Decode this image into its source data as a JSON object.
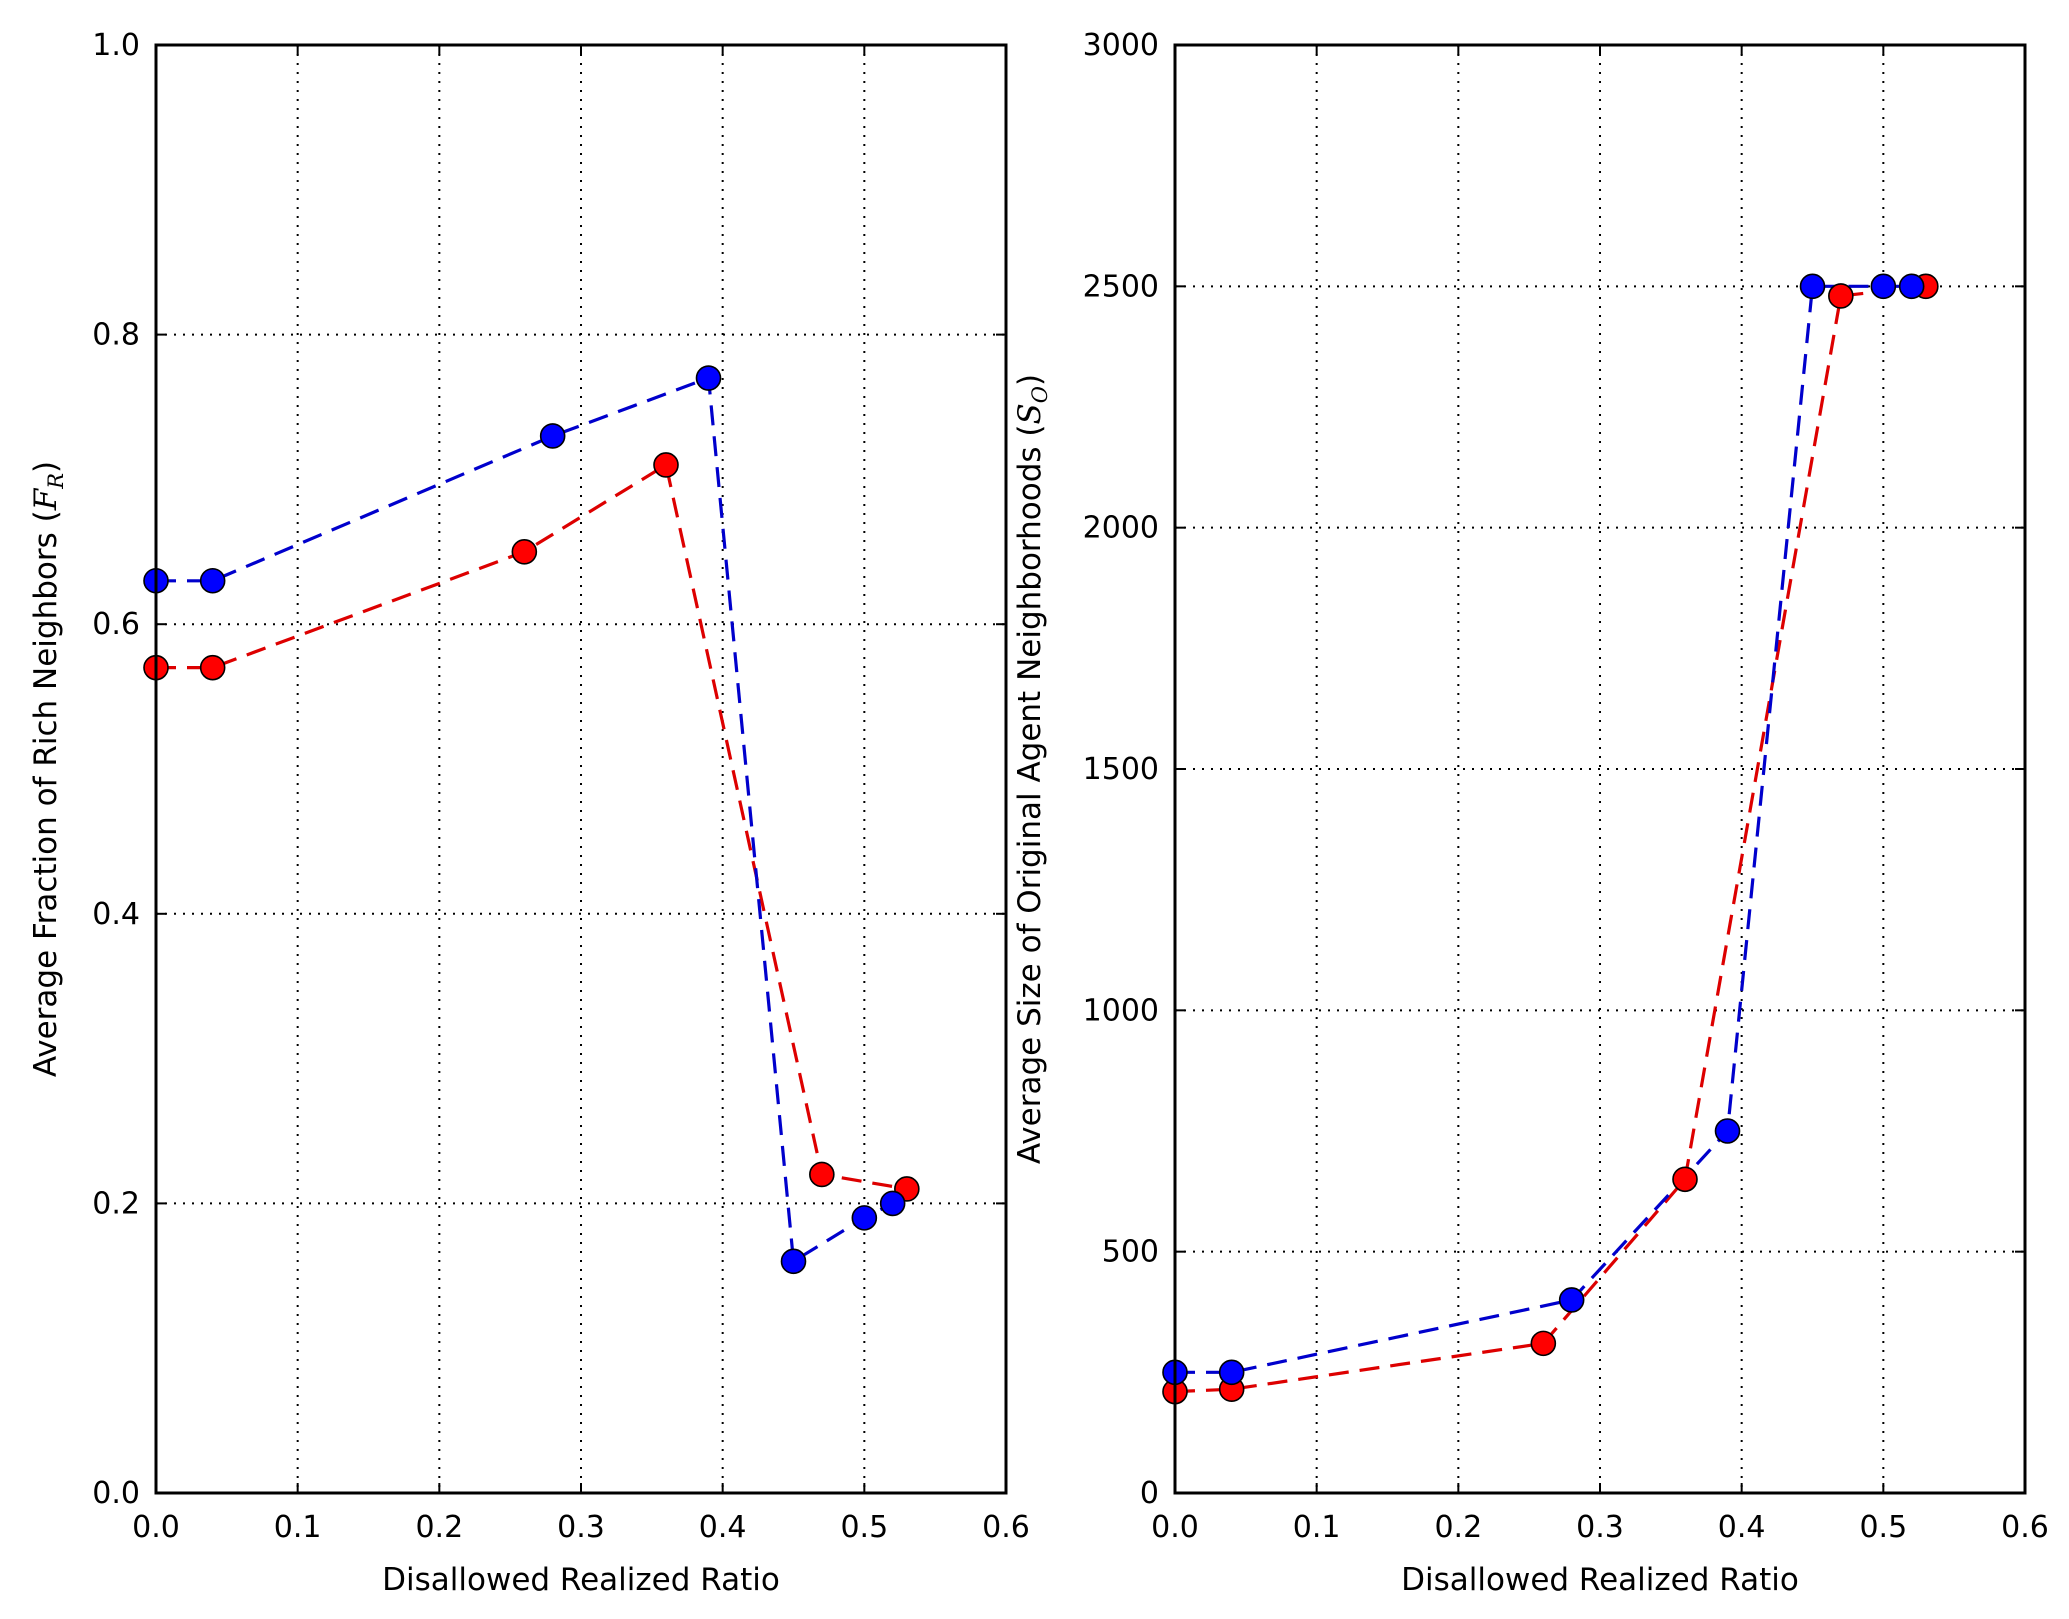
{
  "chart_data": [
    {
      "type": "line",
      "title": "",
      "xlabel": "Disallowed Realized Ratio",
      "ylabel": {
        "prefix": "Average Fraction of Rich Neighbors ",
        "symbol": "F",
        "subscript": "R"
      },
      "xlim": [
        0.0,
        0.6
      ],
      "ylim": [
        0.0,
        1.0
      ],
      "xticks": [
        "0.0",
        "0.1",
        "0.2",
        "0.3",
        "0.4",
        "0.5",
        "0.6"
      ],
      "yticks": [
        "0.0",
        "0.2",
        "0.4",
        "0.6",
        "0.8",
        "1.0"
      ],
      "grid": true,
      "series": [
        {
          "name": "red",
          "color": "#ff0000",
          "line_color": "#dd0000",
          "x": [
            0.0,
            0.04,
            0.26,
            0.36,
            0.47,
            0.53
          ],
          "y": [
            0.57,
            0.57,
            0.65,
            0.71,
            0.22,
            0.21
          ]
        },
        {
          "name": "blue",
          "color": "#0000ff",
          "line_color": "#0000cc",
          "x": [
            0.0,
            0.04,
            0.28,
            0.39,
            0.45,
            0.5,
            0.52
          ],
          "y": [
            0.63,
            0.63,
            0.73,
            0.77,
            0.16,
            0.19,
            0.2
          ]
        }
      ]
    },
    {
      "type": "line",
      "title": "",
      "xlabel": "Disallowed Realized Ratio",
      "ylabel": {
        "prefix": "Average Size of Original Agent Neighborhoods ",
        "symbol": "S",
        "subscript": "O"
      },
      "xlim": [
        0.0,
        0.6
      ],
      "ylim": [
        0,
        3000
      ],
      "xticks": [
        "0.0",
        "0.1",
        "0.2",
        "0.3",
        "0.4",
        "0.5",
        "0.6"
      ],
      "yticks": [
        "0",
        "500",
        "1000",
        "1500",
        "2000",
        "2500",
        "3000"
      ],
      "grid": true,
      "series": [
        {
          "name": "red",
          "color": "#ff0000",
          "line_color": "#dd0000",
          "x": [
            0.0,
            0.04,
            0.26,
            0.36,
            0.47,
            0.53
          ],
          "y": [
            210,
            215,
            310,
            650,
            2480,
            2500
          ]
        },
        {
          "name": "blue",
          "color": "#0000ff",
          "line_color": "#0000cc",
          "x": [
            0.0,
            0.04,
            0.28,
            0.39,
            0.45,
            0.5,
            0.52
          ],
          "y": [
            250,
            250,
            400,
            750,
            2500,
            2500,
            2500
          ]
        }
      ]
    }
  ]
}
